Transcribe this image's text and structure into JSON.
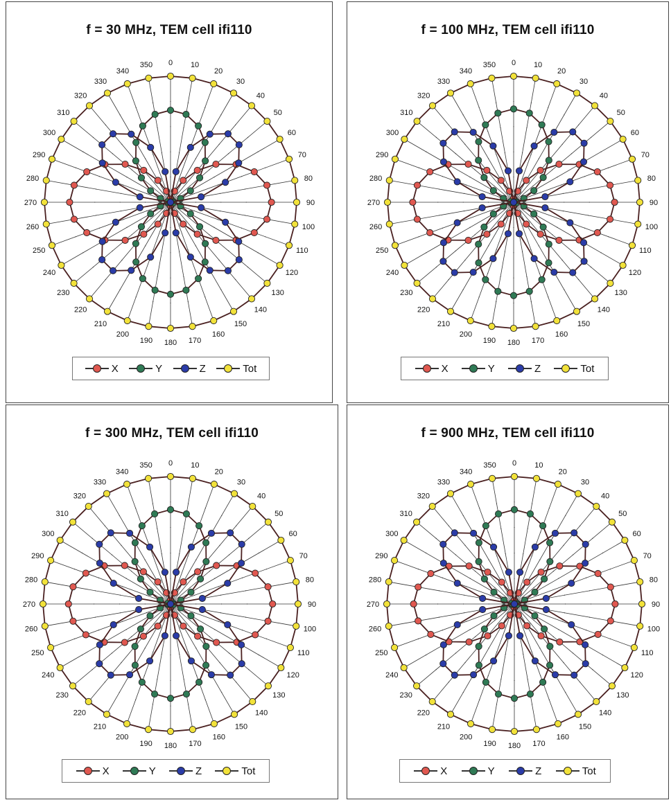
{
  "colors": {
    "X": "#e05850",
    "Y": "#2f7a55",
    "Z": "#2b3ca8",
    "Tot": "#f2e23a",
    "line": "#4a2020",
    "grid": "#333333"
  },
  "chart_data": [
    {
      "type": "polar",
      "title": "f = 30 MHz, TEM cell ifi110",
      "angles_deg": [
        0,
        10,
        20,
        30,
        40,
        50,
        60,
        70,
        80,
        90,
        100,
        110,
        120,
        130,
        140,
        150,
        160,
        170,
        180,
        190,
        200,
        210,
        220,
        230,
        240,
        250,
        260,
        270,
        280,
        290,
        300,
        310,
        320,
        330,
        340,
        350
      ],
      "angle_labels": [
        "0",
        "10",
        "20",
        "30",
        "40",
        "50",
        "60",
        "70",
        "80",
        "90",
        "100",
        "110",
        "120",
        "130",
        "140",
        "150",
        "160",
        "170",
        "180",
        "190",
        "200",
        "210",
        "220",
        "230",
        "240",
        "250",
        "260",
        "270",
        "280",
        "290",
        "300",
        "310",
        "320",
        "330",
        "340",
        "350"
      ],
      "series": [
        {
          "name": "X",
          "shape": "sin2",
          "peak": 0.8
        },
        {
          "name": "Y",
          "shape": "cos_lobe",
          "peak": 0.73
        },
        {
          "name": "Z",
          "shape": "four_lobe",
          "peak": 0.72
        },
        {
          "name": "Tot",
          "shape": "circle",
          "peak": 1.0
        }
      ],
      "legend": [
        "X",
        "Y",
        "Z",
        "Tot"
      ]
    },
    {
      "type": "polar",
      "title": "f = 100 MHz, TEM cell ifi110",
      "angles_deg": [
        0,
        10,
        20,
        30,
        40,
        50,
        60,
        70,
        80,
        90,
        100,
        110,
        120,
        130,
        140,
        150,
        160,
        170,
        180,
        190,
        200,
        210,
        220,
        230,
        240,
        250,
        260,
        270,
        280,
        290,
        300,
        310,
        320,
        330,
        340,
        350
      ],
      "angle_labels": [
        "0",
        "10",
        "20",
        "30",
        "40",
        "50",
        "60",
        "70",
        "80",
        "90",
        "100",
        "110",
        "120",
        "130",
        "140",
        "150",
        "160",
        "170",
        "180",
        "190",
        "200",
        "210",
        "220",
        "230",
        "240",
        "250",
        "260",
        "270",
        "280",
        "290",
        "300",
        "310",
        "320",
        "330",
        "340",
        "350"
      ],
      "series": [
        {
          "name": "X",
          "shape": "sin2",
          "peak": 0.8
        },
        {
          "name": "Y",
          "shape": "cos_lobe",
          "peak": 0.74
        },
        {
          "name": "Z",
          "shape": "four_lobe",
          "peak": 0.74
        },
        {
          "name": "Tot",
          "shape": "circle",
          "peak": 1.0
        }
      ],
      "legend": [
        "X",
        "Y",
        "Z",
        "Tot"
      ]
    },
    {
      "type": "polar",
      "title": "f = 300 MHz, TEM cell ifi110",
      "angles_deg": [
        0,
        10,
        20,
        30,
        40,
        50,
        60,
        70,
        80,
        90,
        100,
        110,
        120,
        130,
        140,
        150,
        160,
        170,
        180,
        190,
        200,
        210,
        220,
        230,
        240,
        250,
        260,
        270,
        280,
        290,
        300,
        310,
        320,
        330,
        340,
        350
      ],
      "angle_labels": [
        "0",
        "10",
        "20",
        "30",
        "40",
        "50",
        "60",
        "70",
        "80",
        "90",
        "100",
        "110",
        "120",
        "130",
        "140",
        "150",
        "160",
        "170",
        "180",
        "190",
        "200",
        "210",
        "220",
        "230",
        "240",
        "250",
        "260",
        "270",
        "280",
        "290",
        "300",
        "310",
        "320",
        "330",
        "340",
        "350"
      ],
      "series": [
        {
          "name": "X",
          "shape": "sin2",
          "peak": 0.8
        },
        {
          "name": "Y",
          "shape": "cos_lobe",
          "peak": 0.74
        },
        {
          "name": "Z",
          "shape": "four_lobe",
          "peak": 0.74
        },
        {
          "name": "Tot",
          "shape": "circle",
          "peak": 1.0
        }
      ],
      "legend": [
        "X",
        "Y",
        "Z",
        "Tot"
      ]
    },
    {
      "type": "polar",
      "title": "f = 900 MHz, TEM cell ifi110",
      "angles_deg": [
        0,
        10,
        20,
        30,
        40,
        50,
        60,
        70,
        80,
        90,
        100,
        110,
        120,
        130,
        140,
        150,
        160,
        170,
        180,
        190,
        200,
        210,
        220,
        230,
        240,
        250,
        260,
        270,
        280,
        290,
        300,
        310,
        320,
        330,
        340,
        350
      ],
      "angle_labels": [
        "0",
        "10",
        "20",
        "30",
        "40",
        "50",
        "60",
        "70",
        "80",
        "90",
        "100",
        "110",
        "120",
        "130",
        "140",
        "150",
        "160",
        "170",
        "180",
        "190",
        "200",
        "210",
        "220",
        "230",
        "240",
        "250",
        "260",
        "270",
        "280",
        "290",
        "300",
        "310",
        "320",
        "330",
        "340",
        "350"
      ],
      "series": [
        {
          "name": "X",
          "shape": "sin2",
          "peak": 0.79
        },
        {
          "name": "Y",
          "shape": "cos_lobe",
          "peak": 0.74
        },
        {
          "name": "Z",
          "shape": "four_lobe",
          "peak": 0.74
        },
        {
          "name": "Tot",
          "shape": "circle",
          "peak": 1.0
        }
      ],
      "legend": [
        "X",
        "Y",
        "Z",
        "Tot"
      ]
    }
  ]
}
